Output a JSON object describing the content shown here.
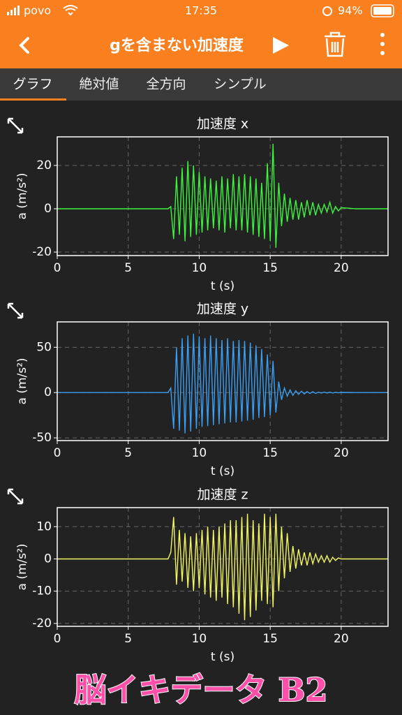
{
  "status_bar": {
    "carrier": "povo",
    "time": "17:35",
    "battery": "94%"
  },
  "header": {
    "title": "gを含まない加速度"
  },
  "tabs": [
    "グラフ",
    "絶対値",
    "全方向",
    "シンプル"
  ],
  "watermark": "脳イキデータ B2",
  "chart_data": [
    {
      "type": "line",
      "title": "加速度 x",
      "x_label": "t (s)",
      "y_label": "a (m/s²)",
      "color": "#3df53d",
      "x": [
        0,
        2,
        4,
        6,
        7.8,
        8,
        8.2,
        8.4,
        8.6,
        8.8,
        9,
        9.2,
        9.4,
        9.6,
        9.8,
        10,
        10.2,
        10.4,
        10.6,
        10.8,
        11,
        11.2,
        11.4,
        11.6,
        11.8,
        12,
        12.2,
        12.4,
        12.6,
        12.8,
        13,
        13.2,
        13.4,
        13.6,
        13.8,
        14,
        14.2,
        14.4,
        14.6,
        14.8,
        15,
        15.2,
        15.4,
        15.6,
        15.8,
        16,
        16.2,
        16.4,
        16.6,
        16.8,
        17,
        17.2,
        17.4,
        17.6,
        17.8,
        18,
        18.2,
        18.4,
        18.6,
        18.8,
        19,
        19.2,
        19.4,
        19.6,
        19.8,
        20,
        21,
        22,
        23.3
      ],
      "values": [
        0,
        0,
        0,
        0,
        0,
        1,
        -14,
        15,
        -12,
        19,
        -15,
        22,
        -13,
        20,
        -12,
        17,
        -11,
        15,
        -10,
        14,
        -9,
        13,
        -10,
        15,
        -11,
        14,
        -9,
        16,
        -10,
        15,
        -10,
        16,
        -11,
        15,
        -12,
        14,
        -13,
        12,
        -14,
        21,
        -15,
        30,
        -18,
        12,
        -8,
        7,
        -6,
        5,
        -5,
        4,
        -5,
        3,
        -4,
        4,
        -3,
        3,
        -3,
        2,
        -2,
        2,
        -1.5,
        3,
        -2,
        1,
        -1,
        0.5,
        0,
        0,
        0
      ],
      "xlim": [
        0,
        23.3
      ],
      "ylim": [
        -21.6,
        33.2
      ],
      "xticks": [
        0,
        5,
        10,
        15,
        20
      ],
      "yticks": [
        -20,
        0,
        20
      ],
      "grid": true
    },
    {
      "type": "line",
      "title": "加速度 y",
      "x_label": "t (s)",
      "y_label": "a (m/s²)",
      "color": "#3a9ff5",
      "x": [
        0,
        2,
        4,
        6,
        7.8,
        8,
        8.2,
        8.4,
        8.6,
        8.8,
        9,
        9.2,
        9.4,
        9.6,
        9.8,
        10,
        10.2,
        10.4,
        10.6,
        10.8,
        11,
        11.2,
        11.4,
        11.6,
        11.8,
        12,
        12.2,
        12.4,
        12.6,
        12.8,
        13,
        13.2,
        13.4,
        13.6,
        13.8,
        14,
        14.2,
        14.4,
        14.6,
        14.8,
        15,
        15.2,
        15.4,
        15.6,
        15.8,
        16,
        16.2,
        16.4,
        16.6,
        16.8,
        17,
        17.2,
        17.4,
        17.6,
        17.8,
        18,
        18.2,
        18.4,
        18.6,
        18.8,
        19,
        19.2,
        19.4,
        19.6,
        19.8,
        20,
        21,
        22,
        23.3
      ],
      "values": [
        0,
        0,
        0,
        0,
        0,
        5,
        -40,
        50,
        -42,
        60,
        -45,
        63,
        -43,
        65,
        -40,
        62,
        -38,
        60,
        -37,
        63,
        -36,
        60,
        -35,
        58,
        -34,
        60,
        -33,
        57,
        -33,
        58,
        -32,
        57,
        -31,
        55,
        -30,
        52,
        -28,
        48,
        -27,
        42,
        -25,
        35,
        -22,
        12,
        -8,
        5,
        -4,
        3,
        -3,
        2,
        -2,
        1.5,
        -1.5,
        1,
        -1,
        1,
        -1,
        0.5,
        -0.5,
        0.5,
        -0.5,
        0.5,
        -0.5,
        0.3,
        -0.3,
        0.2,
        0,
        0,
        0
      ],
      "xlim": [
        0,
        23.3
      ],
      "ylim": [
        -53,
        78
      ],
      "xticks": [
        0,
        5,
        10,
        15,
        20
      ],
      "yticks": [
        -50,
        0,
        50
      ],
      "grid": true
    },
    {
      "type": "line",
      "title": "加速度 z",
      "x_label": "t (s)",
      "y_label": "a (m/s²)",
      "color": "#f2f562",
      "x": [
        0,
        2,
        4,
        6,
        7.8,
        8,
        8.2,
        8.4,
        8.6,
        8.8,
        9,
        9.2,
        9.4,
        9.6,
        9.8,
        10,
        10.2,
        10.4,
        10.6,
        10.8,
        11,
        11.2,
        11.4,
        11.6,
        11.8,
        12,
        12.2,
        12.4,
        12.6,
        12.8,
        13,
        13.2,
        13.4,
        13.6,
        13.8,
        14,
        14.2,
        14.4,
        14.6,
        14.8,
        15,
        15.2,
        15.4,
        15.6,
        15.8,
        16,
        16.2,
        16.4,
        16.6,
        16.8,
        17,
        17.2,
        17.4,
        17.6,
        17.8,
        18,
        18.2,
        18.4,
        18.6,
        18.8,
        19,
        19.2,
        19.4,
        19.6,
        19.8,
        20,
        21,
        22,
        23.3
      ],
      "values": [
        0,
        0,
        0,
        0,
        0,
        2,
        13,
        -8,
        9,
        -7,
        8,
        -9,
        7,
        -10,
        8,
        -9,
        9,
        -11,
        10,
        -12,
        9,
        -13,
        10,
        -12,
        11,
        -14,
        12,
        -15,
        12,
        -17,
        13,
        -19,
        14,
        -18,
        12,
        -16,
        11,
        -13,
        14,
        -14,
        13,
        -15,
        14,
        -10,
        10,
        -6,
        8,
        -4,
        4,
        -3,
        3,
        -2,
        2,
        -2,
        2,
        -1.5,
        1.5,
        -1,
        1,
        -1,
        1,
        -1,
        0.5,
        -0.5,
        0.3,
        0,
        0,
        0,
        0
      ],
      "xlim": [
        0,
        23.3
      ],
      "ylim": [
        -20.9,
        15.9
      ],
      "xticks": [
        0,
        5,
        10,
        15,
        20
      ],
      "yticks": [
        -20,
        -10,
        0,
        10
      ],
      "grid": true
    }
  ]
}
